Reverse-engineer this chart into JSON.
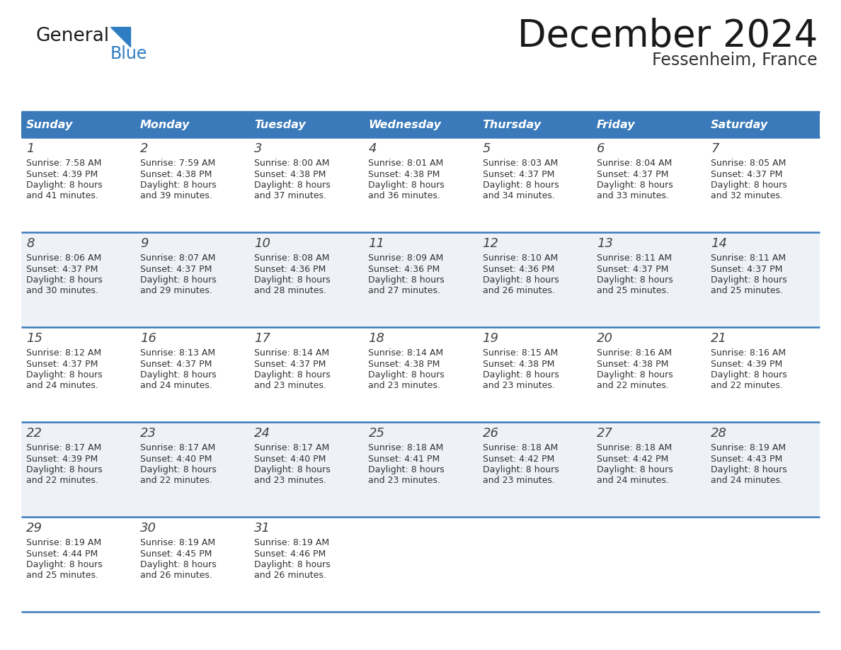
{
  "title": "December 2024",
  "subtitle": "Fessenheim, France",
  "days_of_week": [
    "Sunday",
    "Monday",
    "Tuesday",
    "Wednesday",
    "Thursday",
    "Friday",
    "Saturday"
  ],
  "header_bg": "#3a7aba",
  "header_text": "#ffffff",
  "row_bg_even": "#eef2f7",
  "row_bg_odd": "#ffffff",
  "separator_color": "#3a7aba",
  "text_color": "#333333",
  "calendar_data": [
    [
      {
        "day": 1,
        "sunrise": "7:58 AM",
        "sunset": "4:39 PM",
        "daylight": "8 hours and 41 minutes"
      },
      {
        "day": 2,
        "sunrise": "7:59 AM",
        "sunset": "4:38 PM",
        "daylight": "8 hours and 39 minutes"
      },
      {
        "day": 3,
        "sunrise": "8:00 AM",
        "sunset": "4:38 PM",
        "daylight": "8 hours and 37 minutes"
      },
      {
        "day": 4,
        "sunrise": "8:01 AM",
        "sunset": "4:38 PM",
        "daylight": "8 hours and 36 minutes"
      },
      {
        "day": 5,
        "sunrise": "8:03 AM",
        "sunset": "4:37 PM",
        "daylight": "8 hours and 34 minutes"
      },
      {
        "day": 6,
        "sunrise": "8:04 AM",
        "sunset": "4:37 PM",
        "daylight": "8 hours and 33 minutes"
      },
      {
        "day": 7,
        "sunrise": "8:05 AM",
        "sunset": "4:37 PM",
        "daylight": "8 hours and 32 minutes"
      }
    ],
    [
      {
        "day": 8,
        "sunrise": "8:06 AM",
        "sunset": "4:37 PM",
        "daylight": "8 hours and 30 minutes"
      },
      {
        "day": 9,
        "sunrise": "8:07 AM",
        "sunset": "4:37 PM",
        "daylight": "8 hours and 29 minutes"
      },
      {
        "day": 10,
        "sunrise": "8:08 AM",
        "sunset": "4:36 PM",
        "daylight": "8 hours and 28 minutes"
      },
      {
        "day": 11,
        "sunrise": "8:09 AM",
        "sunset": "4:36 PM",
        "daylight": "8 hours and 27 minutes"
      },
      {
        "day": 12,
        "sunrise": "8:10 AM",
        "sunset": "4:36 PM",
        "daylight": "8 hours and 26 minutes"
      },
      {
        "day": 13,
        "sunrise": "8:11 AM",
        "sunset": "4:37 PM",
        "daylight": "8 hours and 25 minutes"
      },
      {
        "day": 14,
        "sunrise": "8:11 AM",
        "sunset": "4:37 PM",
        "daylight": "8 hours and 25 minutes"
      }
    ],
    [
      {
        "day": 15,
        "sunrise": "8:12 AM",
        "sunset": "4:37 PM",
        "daylight": "8 hours and 24 minutes"
      },
      {
        "day": 16,
        "sunrise": "8:13 AM",
        "sunset": "4:37 PM",
        "daylight": "8 hours and 24 minutes"
      },
      {
        "day": 17,
        "sunrise": "8:14 AM",
        "sunset": "4:37 PM",
        "daylight": "8 hours and 23 minutes"
      },
      {
        "day": 18,
        "sunrise": "8:14 AM",
        "sunset": "4:38 PM",
        "daylight": "8 hours and 23 minutes"
      },
      {
        "day": 19,
        "sunrise": "8:15 AM",
        "sunset": "4:38 PM",
        "daylight": "8 hours and 23 minutes"
      },
      {
        "day": 20,
        "sunrise": "8:16 AM",
        "sunset": "4:38 PM",
        "daylight": "8 hours and 22 minutes"
      },
      {
        "day": 21,
        "sunrise": "8:16 AM",
        "sunset": "4:39 PM",
        "daylight": "8 hours and 22 minutes"
      }
    ],
    [
      {
        "day": 22,
        "sunrise": "8:17 AM",
        "sunset": "4:39 PM",
        "daylight": "8 hours and 22 minutes"
      },
      {
        "day": 23,
        "sunrise": "8:17 AM",
        "sunset": "4:40 PM",
        "daylight": "8 hours and 22 minutes"
      },
      {
        "day": 24,
        "sunrise": "8:17 AM",
        "sunset": "4:40 PM",
        "daylight": "8 hours and 23 minutes"
      },
      {
        "day": 25,
        "sunrise": "8:18 AM",
        "sunset": "4:41 PM",
        "daylight": "8 hours and 23 minutes"
      },
      {
        "day": 26,
        "sunrise": "8:18 AM",
        "sunset": "4:42 PM",
        "daylight": "8 hours and 23 minutes"
      },
      {
        "day": 27,
        "sunrise": "8:18 AM",
        "sunset": "4:42 PM",
        "daylight": "8 hours and 24 minutes"
      },
      {
        "day": 28,
        "sunrise": "8:19 AM",
        "sunset": "4:43 PM",
        "daylight": "8 hours and 24 minutes"
      }
    ],
    [
      {
        "day": 29,
        "sunrise": "8:19 AM",
        "sunset": "4:44 PM",
        "daylight": "8 hours and 25 minutes"
      },
      {
        "day": 30,
        "sunrise": "8:19 AM",
        "sunset": "4:45 PM",
        "daylight": "8 hours and 26 minutes"
      },
      {
        "day": 31,
        "sunrise": "8:19 AM",
        "sunset": "4:46 PM",
        "daylight": "8 hours and 26 minutes"
      },
      null,
      null,
      null,
      null
    ]
  ]
}
